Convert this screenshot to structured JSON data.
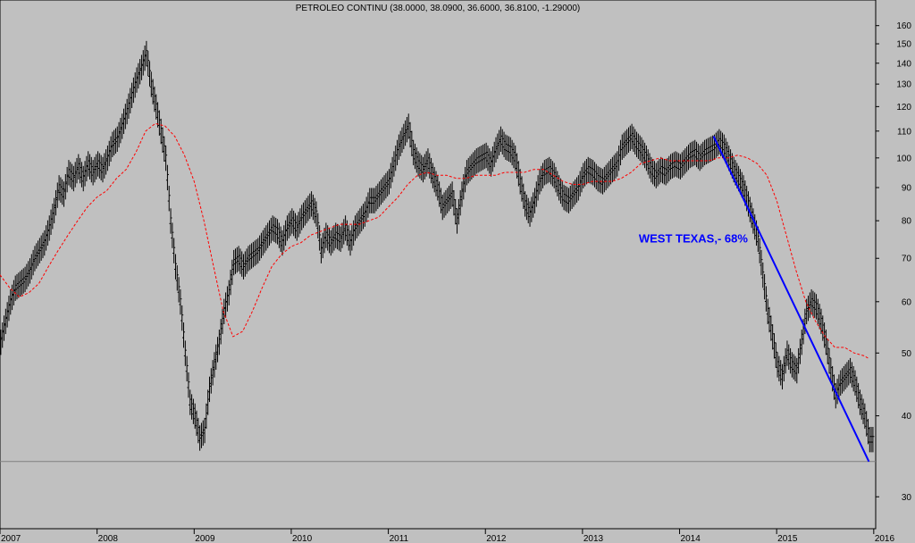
{
  "chart_data": {
    "type": "line",
    "title": "PETROLEO CONTINU (38.0000, 38.0900, 36.6000, 36.8100, -1.29000)",
    "xlabel": "",
    "ylabel": "",
    "y_scale": "log",
    "ylim": [
      28,
      165
    ],
    "xlim": [
      2007.0,
      2016.02
    ],
    "x_ticks": [
      "2007",
      "2008",
      "2009",
      "2010",
      "2011",
      "2012",
      "2013",
      "2014",
      "2015",
      "2016"
    ],
    "y_ticks": [
      30,
      40,
      50,
      60,
      70,
      80,
      90,
      100,
      110,
      120,
      130,
      140,
      150,
      160
    ],
    "grid": false,
    "legend": "none",
    "colors": {
      "price": "#000000",
      "moving_average": "#ff0000",
      "trendline": "#0000ff",
      "support": "#808080",
      "background": "#c0c0c0"
    },
    "annotation": {
      "text": "WEST TEXAS,- 68%",
      "x": 2014.5,
      "y": 74
    },
    "series": [
      {
        "style": "ohlc-bars",
        "points": [
          [
            2007.0,
            52
          ],
          [
            2007.05,
            56
          ],
          [
            2007.1,
            60
          ],
          [
            2007.15,
            63
          ],
          [
            2007.2,
            64
          ],
          [
            2007.25,
            65
          ],
          [
            2007.3,
            67
          ],
          [
            2007.35,
            70
          ],
          [
            2007.4,
            72
          ],
          [
            2007.45,
            74
          ],
          [
            2007.5,
            78
          ],
          [
            2007.55,
            83
          ],
          [
            2007.6,
            90
          ],
          [
            2007.65,
            88
          ],
          [
            2007.7,
            95
          ],
          [
            2007.75,
            93
          ],
          [
            2007.8,
            97
          ],
          [
            2007.85,
            93
          ],
          [
            2007.9,
            98
          ],
          [
            2007.95,
            95
          ],
          [
            2008.0,
            98
          ],
          [
            2008.05,
            96
          ],
          [
            2008.1,
            100
          ],
          [
            2008.15,
            105
          ],
          [
            2008.2,
            107
          ],
          [
            2008.25,
            112
          ],
          [
            2008.3,
            118
          ],
          [
            2008.35,
            125
          ],
          [
            2008.4,
            132
          ],
          [
            2008.45,
            138
          ],
          [
            2008.5,
            145
          ],
          [
            2008.55,
            130
          ],
          [
            2008.6,
            120
          ],
          [
            2008.65,
            110
          ],
          [
            2008.7,
            100
          ],
          [
            2008.75,
            80
          ],
          [
            2008.8,
            68
          ],
          [
            2008.85,
            60
          ],
          [
            2008.9,
            50
          ],
          [
            2008.95,
            42
          ],
          [
            2009.0,
            40
          ],
          [
            2009.05,
            37
          ],
          [
            2009.1,
            38
          ],
          [
            2009.15,
            44
          ],
          [
            2009.2,
            48
          ],
          [
            2009.25,
            52
          ],
          [
            2009.3,
            58
          ],
          [
            2009.35,
            62
          ],
          [
            2009.4,
            69
          ],
          [
            2009.45,
            70
          ],
          [
            2009.5,
            68
          ],
          [
            2009.55,
            70
          ],
          [
            2009.6,
            71
          ],
          [
            2009.65,
            72
          ],
          [
            2009.7,
            74
          ],
          [
            2009.75,
            76
          ],
          [
            2009.8,
            78
          ],
          [
            2009.85,
            77
          ],
          [
            2009.9,
            74
          ],
          [
            2009.95,
            78
          ],
          [
            2010.0,
            80
          ],
          [
            2010.05,
            78
          ],
          [
            2010.1,
            81
          ],
          [
            2010.15,
            83
          ],
          [
            2010.2,
            85
          ],
          [
            2010.25,
            82
          ],
          [
            2010.3,
            72
          ],
          [
            2010.35,
            76
          ],
          [
            2010.4,
            74
          ],
          [
            2010.45,
            76
          ],
          [
            2010.5,
            75
          ],
          [
            2010.55,
            78
          ],
          [
            2010.6,
            74
          ],
          [
            2010.65,
            78
          ],
          [
            2010.7,
            80
          ],
          [
            2010.75,
            82
          ],
          [
            2010.8,
            86
          ],
          [
            2010.85,
            86
          ],
          [
            2010.9,
            88
          ],
          [
            2010.95,
            90
          ],
          [
            2011.0,
            92
          ],
          [
            2011.05,
            98
          ],
          [
            2011.1,
            104
          ],
          [
            2011.15,
            108
          ],
          [
            2011.2,
            112
          ],
          [
            2011.25,
            102
          ],
          [
            2011.3,
            98
          ],
          [
            2011.35,
            96
          ],
          [
            2011.4,
            99
          ],
          [
            2011.45,
            94
          ],
          [
            2011.5,
            90
          ],
          [
            2011.55,
            84
          ],
          [
            2011.6,
            86
          ],
          [
            2011.65,
            88
          ],
          [
            2011.7,
            80
          ],
          [
            2011.75,
            88
          ],
          [
            2011.8,
            95
          ],
          [
            2011.85,
            97
          ],
          [
            2011.9,
            99
          ],
          [
            2011.95,
            100
          ],
          [
            2012.0,
            101
          ],
          [
            2012.05,
            98
          ],
          [
            2012.1,
            103
          ],
          [
            2012.15,
            107
          ],
          [
            2012.2,
            104
          ],
          [
            2012.25,
            103
          ],
          [
            2012.3,
            100
          ],
          [
            2012.35,
            92
          ],
          [
            2012.4,
            85
          ],
          [
            2012.45,
            82
          ],
          [
            2012.5,
            86
          ],
          [
            2012.55,
            92
          ],
          [
            2012.6,
            95
          ],
          [
            2012.65,
            96
          ],
          [
            2012.7,
            94
          ],
          [
            2012.75,
            90
          ],
          [
            2012.8,
            87
          ],
          [
            2012.85,
            86
          ],
          [
            2012.9,
            88
          ],
          [
            2012.95,
            90
          ],
          [
            2013.0,
            94
          ],
          [
            2013.05,
            96
          ],
          [
            2013.1,
            95
          ],
          [
            2013.15,
            93
          ],
          [
            2013.2,
            92
          ],
          [
            2013.25,
            94
          ],
          [
            2013.3,
            96
          ],
          [
            2013.35,
            98
          ],
          [
            2013.4,
            104
          ],
          [
            2013.45,
            106
          ],
          [
            2013.5,
            108
          ],
          [
            2013.55,
            105
          ],
          [
            2013.6,
            103
          ],
          [
            2013.65,
            100
          ],
          [
            2013.7,
            96
          ],
          [
            2013.75,
            94
          ],
          [
            2013.8,
            96
          ],
          [
            2013.85,
            95
          ],
          [
            2013.9,
            97
          ],
          [
            2013.95,
            98
          ],
          [
            2014.0,
            97
          ],
          [
            2014.05,
            99
          ],
          [
            2014.1,
            101
          ],
          [
            2014.15,
            102
          ],
          [
            2014.2,
            100
          ],
          [
            2014.25,
            102
          ],
          [
            2014.3,
            103
          ],
          [
            2014.35,
            104
          ],
          [
            2014.4,
            106
          ],
          [
            2014.45,
            104
          ],
          [
            2014.5,
            100
          ],
          [
            2014.55,
            96
          ],
          [
            2014.6,
            93
          ],
          [
            2014.65,
            90
          ],
          [
            2014.7,
            85
          ],
          [
            2014.75,
            80
          ],
          [
            2014.8,
            75
          ],
          [
            2014.85,
            66
          ],
          [
            2014.9,
            58
          ],
          [
            2014.95,
            53
          ],
          [
            2015.0,
            48
          ],
          [
            2015.05,
            46
          ],
          [
            2015.1,
            50
          ],
          [
            2015.15,
            48
          ],
          [
            2015.2,
            47
          ],
          [
            2015.25,
            52
          ],
          [
            2015.3,
            58
          ],
          [
            2015.35,
            60
          ],
          [
            2015.4,
            59
          ],
          [
            2015.45,
            56
          ],
          [
            2015.5,
            52
          ],
          [
            2015.55,
            47
          ],
          [
            2015.6,
            43
          ],
          [
            2015.65,
            45
          ],
          [
            2015.7,
            46
          ],
          [
            2015.75,
            47
          ],
          [
            2015.8,
            45
          ],
          [
            2015.85,
            42
          ],
          [
            2015.9,
            40
          ],
          [
            2015.95,
            36.8
          ]
        ]
      },
      {
        "style": "dashed",
        "points": [
          [
            2007.0,
            66
          ],
          [
            2007.1,
            63
          ],
          [
            2007.2,
            61
          ],
          [
            2007.3,
            62
          ],
          [
            2007.4,
            64
          ],
          [
            2007.5,
            68
          ],
          [
            2007.6,
            72
          ],
          [
            2007.7,
            76
          ],
          [
            2007.8,
            80
          ],
          [
            2007.9,
            84
          ],
          [
            2008.0,
            87
          ],
          [
            2008.1,
            89
          ],
          [
            2008.2,
            93
          ],
          [
            2008.3,
            96
          ],
          [
            2008.4,
            102
          ],
          [
            2008.5,
            110
          ],
          [
            2008.6,
            113
          ],
          [
            2008.7,
            112
          ],
          [
            2008.8,
            108
          ],
          [
            2008.9,
            101
          ],
          [
            2009.0,
            92
          ],
          [
            2009.1,
            80
          ],
          [
            2009.2,
            68
          ],
          [
            2009.3,
            58
          ],
          [
            2009.4,
            53
          ],
          [
            2009.5,
            54
          ],
          [
            2009.6,
            58
          ],
          [
            2009.7,
            63
          ],
          [
            2009.8,
            68
          ],
          [
            2009.9,
            71
          ],
          [
            2010.0,
            73
          ],
          [
            2010.1,
            74
          ],
          [
            2010.2,
            76
          ],
          [
            2010.3,
            77
          ],
          [
            2010.4,
            78
          ],
          [
            2010.5,
            79
          ],
          [
            2010.6,
            79
          ],
          [
            2010.7,
            79
          ],
          [
            2010.8,
            80
          ],
          [
            2010.9,
            81
          ],
          [
            2011.0,
            84
          ],
          [
            2011.1,
            87
          ],
          [
            2011.2,
            91
          ],
          [
            2011.3,
            94
          ],
          [
            2011.4,
            95
          ],
          [
            2011.5,
            94
          ],
          [
            2011.6,
            94
          ],
          [
            2011.7,
            93
          ],
          [
            2011.8,
            93
          ],
          [
            2011.9,
            94
          ],
          [
            2012.0,
            94
          ],
          [
            2012.1,
            94
          ],
          [
            2012.2,
            95
          ],
          [
            2012.3,
            95
          ],
          [
            2012.4,
            95
          ],
          [
            2012.5,
            96
          ],
          [
            2012.6,
            96
          ],
          [
            2012.7,
            94
          ],
          [
            2012.8,
            92
          ],
          [
            2012.9,
            91
          ],
          [
            2013.0,
            91
          ],
          [
            2013.1,
            92
          ],
          [
            2013.2,
            92
          ],
          [
            2013.3,
            92
          ],
          [
            2013.4,
            93
          ],
          [
            2013.5,
            95
          ],
          [
            2013.6,
            98
          ],
          [
            2013.7,
            99
          ],
          [
            2013.8,
            100
          ],
          [
            2013.9,
            99
          ],
          [
            2014.0,
            99
          ],
          [
            2014.1,
            99
          ],
          [
            2014.2,
            99
          ],
          [
            2014.3,
            99
          ],
          [
            2014.4,
            100
          ],
          [
            2014.5,
            100
          ],
          [
            2014.6,
            101
          ],
          [
            2014.7,
            100
          ],
          [
            2014.8,
            98
          ],
          [
            2014.9,
            94
          ],
          [
            2015.0,
            86
          ],
          [
            2015.1,
            76
          ],
          [
            2015.2,
            67
          ],
          [
            2015.3,
            60
          ],
          [
            2015.4,
            56
          ],
          [
            2015.5,
            53
          ],
          [
            2015.6,
            51
          ],
          [
            2015.7,
            51
          ],
          [
            2015.8,
            50
          ],
          [
            2015.9,
            49.5
          ],
          [
            2015.95,
            49
          ]
        ]
      }
    ],
    "trendline": {
      "x": [
        2014.35,
        2015.95
      ],
      "y": [
        108,
        34
      ]
    },
    "support_line": {
      "y": 34
    }
  }
}
